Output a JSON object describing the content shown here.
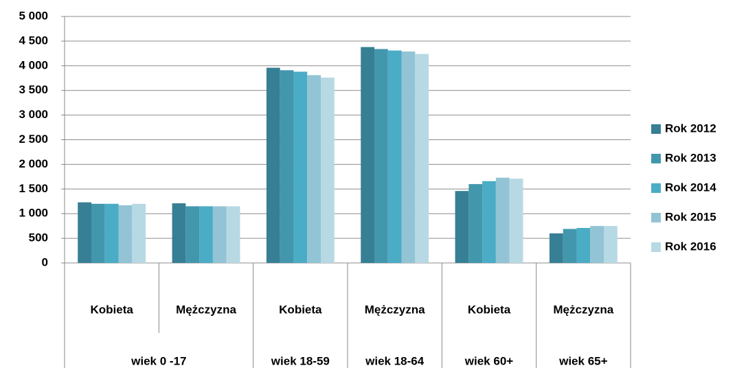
{
  "chart_data": {
    "type": "bar",
    "groups": [
      {
        "label": "wiek 0 -17",
        "categories": [
          "Kobieta",
          "Mężczyzna"
        ]
      },
      {
        "label": "wiek 18-59",
        "categories": [
          "Kobieta"
        ]
      },
      {
        "label": "wiek 18-64",
        "categories": [
          "Mężczyzna"
        ]
      },
      {
        "label": "wiek 60+",
        "categories": [
          "Kobieta"
        ]
      },
      {
        "label": "wiek 65+",
        "categories": [
          "Mężczyzna"
        ]
      }
    ],
    "series": [
      {
        "name": "Rok 2012",
        "color": "#377f94",
        "values": [
          1230,
          1210,
          3960,
          4380,
          1460,
          600
        ]
      },
      {
        "name": "Rok 2013",
        "color": "#4397ad",
        "values": [
          1200,
          1150,
          3910,
          4340,
          1600,
          690
        ]
      },
      {
        "name": "Rok 2014",
        "color": "#4bacc6",
        "values": [
          1200,
          1150,
          3880,
          4310,
          1660,
          710
        ]
      },
      {
        "name": "Rok 2015",
        "color": "#93c4d5",
        "values": [
          1170,
          1150,
          3810,
          4290,
          1730,
          750
        ]
      },
      {
        "name": "Rok 2016",
        "color": "#b7d9e4",
        "values": [
          1200,
          1150,
          3760,
          4240,
          1710,
          750
        ]
      }
    ],
    "ylim": [
      0,
      5000
    ],
    "yticks": [
      0,
      500,
      {
        "value": 1000,
        "label": "1 000"
      },
      {
        "value": 1500,
        "label": "1 500"
      },
      {
        "value": 2000,
        "label": "2 000"
      },
      {
        "value": 2500,
        "label": "2 500"
      },
      {
        "value": 3000,
        "label": "3 000"
      },
      {
        "value": 3500,
        "label": "3 500"
      },
      {
        "value": 4000,
        "label": "4 000"
      },
      {
        "value": 4500,
        "label": "4 500"
      },
      {
        "value": 5000,
        "label": "5 000"
      }
    ],
    "grid": true,
    "legend": "right"
  }
}
